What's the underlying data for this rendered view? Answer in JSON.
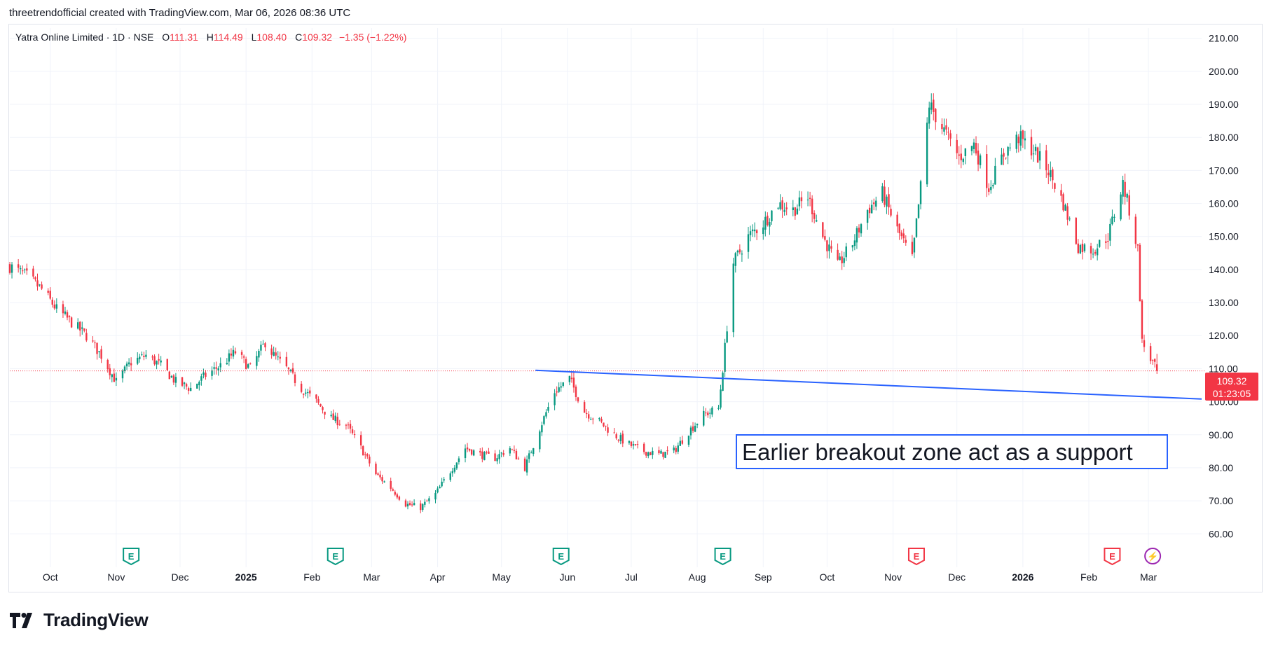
{
  "caption": "threetrendofficial created with TradingView.com, Mar 06, 2026 08:36 UTC",
  "legend": {
    "symbol": "Yatra Online Limited · 1D · NSE",
    "open_label": "O",
    "open": "111.31",
    "high_label": "H",
    "high": "114.49",
    "low_label": "L",
    "low": "108.40",
    "close_label": "C",
    "close": "109.32",
    "change": "−1.35 (−1.22%)"
  },
  "price_tag": {
    "price": "109.32",
    "countdown": "01:23:05"
  },
  "annotation": "Earlier breakout zone act as a support",
  "brand": "TradingView",
  "colors": {
    "up": "#089981",
    "down": "#f23645",
    "trendline": "#2962ff",
    "earnings_past": "#089981",
    "earnings_future": "#f23645",
    "dividend": "#9c27b0"
  },
  "event_icons": [
    {
      "label": "E",
      "date": "2024-11-08",
      "kind": "earnings-past"
    },
    {
      "label": "E",
      "date": "2025-02-12",
      "kind": "earnings-past"
    },
    {
      "label": "E",
      "date": "2025-05-29",
      "kind": "earnings-past"
    },
    {
      "label": "E",
      "date": "2025-08-13",
      "kind": "earnings-past"
    },
    {
      "label": "E",
      "date": "2025-11-12",
      "kind": "earnings-future"
    },
    {
      "label": "E",
      "date": "2026-02-12",
      "kind": "earnings-future"
    },
    {
      "label": "⚡",
      "date": "2026-03-03",
      "kind": "dividend"
    }
  ],
  "chart_data": {
    "type": "candlestick",
    "title": "Yatra Online Limited · 1D · NSE",
    "y_ticks": [
      "60.00",
      "70.00",
      "80.00",
      "90.00",
      "100.00",
      "110.00",
      "120.00",
      "130.00",
      "140.00",
      "150.00",
      "160.00",
      "170.00",
      "180.00",
      "190.00",
      "200.00",
      "210.00"
    ],
    "ylim": [
      52,
      211
    ],
    "x_ticks": [
      {
        "label": "Oct",
        "date": "2024-10-01",
        "bold": false
      },
      {
        "label": "Nov",
        "date": "2024-11-01",
        "bold": false
      },
      {
        "label": "Dec",
        "date": "2024-12-01",
        "bold": false
      },
      {
        "label": "2025",
        "date": "2025-01-01",
        "bold": true
      },
      {
        "label": "Feb",
        "date": "2025-02-01",
        "bold": false
      },
      {
        "label": "Mar",
        "date": "2025-03-01",
        "bold": false
      },
      {
        "label": "Apr",
        "date": "2025-04-01",
        "bold": false
      },
      {
        "label": "May",
        "date": "2025-05-01",
        "bold": false
      },
      {
        "label": "Jun",
        "date": "2025-06-01",
        "bold": false
      },
      {
        "label": "Jul",
        "date": "2025-07-01",
        "bold": false
      },
      {
        "label": "Aug",
        "date": "2025-08-01",
        "bold": false
      },
      {
        "label": "Sep",
        "date": "2025-09-01",
        "bold": false
      },
      {
        "label": "Oct",
        "date": "2025-10-01",
        "bold": false
      },
      {
        "label": "Nov",
        "date": "2025-11-01",
        "bold": false
      },
      {
        "label": "Dec",
        "date": "2025-12-01",
        "bold": false
      },
      {
        "label": "2026",
        "date": "2026-01-01",
        "bold": true
      },
      {
        "label": "Feb",
        "date": "2026-02-01",
        "bold": false
      },
      {
        "label": "Mar",
        "date": "2026-03-01",
        "bold": false
      }
    ],
    "xlim": [
      "2024-09-12",
      "2026-03-26"
    ],
    "last_price": 109.32,
    "grid": true,
    "trendline": {
      "start": {
        "date": "2025-05-17",
        "price": 109.5
      },
      "end": {
        "date": "2026-03-26",
        "price": 100.8
      }
    },
    "close_path": [
      [
        "2024-09-12",
        141
      ],
      [
        "2024-09-20",
        138
      ],
      [
        "2024-09-27",
        134
      ],
      [
        "2024-10-04",
        128
      ],
      [
        "2024-10-11",
        124
      ],
      [
        "2024-10-18",
        120
      ],
      [
        "2024-10-25",
        114
      ],
      [
        "2024-11-01",
        106
      ],
      [
        "2024-11-08",
        112
      ],
      [
        "2024-11-15",
        114
      ],
      [
        "2024-11-22",
        111
      ],
      [
        "2024-11-29",
        106
      ],
      [
        "2024-12-06",
        104
      ],
      [
        "2024-12-13",
        108
      ],
      [
        "2024-12-20",
        111
      ],
      [
        "2024-12-27",
        115
      ],
      [
        "2025-01-03",
        110
      ],
      [
        "2025-01-10",
        118
      ],
      [
        "2025-01-14",
        114
      ],
      [
        "2025-01-20",
        110
      ],
      [
        "2025-01-27",
        104
      ],
      [
        "2025-02-03",
        100
      ],
      [
        "2025-02-10",
        95
      ],
      [
        "2025-02-17",
        93
      ],
      [
        "2025-02-24",
        86
      ],
      [
        "2025-03-03",
        78
      ],
      [
        "2025-03-10",
        74
      ],
      [
        "2025-03-17",
        69
      ],
      [
        "2025-03-24",
        68
      ],
      [
        "2025-03-31",
        72
      ],
      [
        "2025-04-07",
        79
      ],
      [
        "2025-04-14",
        86
      ],
      [
        "2025-04-21",
        84
      ],
      [
        "2025-04-28",
        83
      ],
      [
        "2025-05-05",
        86
      ],
      [
        "2025-05-12",
        80
      ],
      [
        "2025-05-19",
        92
      ],
      [
        "2025-05-26",
        103
      ],
      [
        "2025-06-02",
        107
      ],
      [
        "2025-06-09",
        97
      ],
      [
        "2025-06-16",
        94
      ],
      [
        "2025-06-23",
        90
      ],
      [
        "2025-06-30",
        87
      ],
      [
        "2025-07-07",
        85
      ],
      [
        "2025-07-14",
        84
      ],
      [
        "2025-07-21",
        85
      ],
      [
        "2025-07-28",
        91
      ],
      [
        "2025-08-04",
        96
      ],
      [
        "2025-08-11",
        98
      ],
      [
        "2025-08-13",
        110
      ],
      [
        "2025-08-18",
        142
      ],
      [
        "2025-08-25",
        150
      ],
      [
        "2025-09-01",
        154
      ],
      [
        "2025-09-08",
        160
      ],
      [
        "2025-09-15",
        158
      ],
      [
        "2025-09-22",
        162
      ],
      [
        "2025-09-29",
        150
      ],
      [
        "2025-10-06",
        141
      ],
      [
        "2025-10-13",
        148
      ],
      [
        "2025-10-20",
        158
      ],
      [
        "2025-10-27",
        163
      ],
      [
        "2025-11-03",
        152
      ],
      [
        "2025-11-10",
        143
      ],
      [
        "2025-11-14",
        165
      ],
      [
        "2025-11-18",
        190
      ],
      [
        "2025-11-25",
        182
      ],
      [
        "2025-12-02",
        174
      ],
      [
        "2025-12-09",
        178
      ],
      [
        "2025-12-16",
        165
      ],
      [
        "2025-12-23",
        175
      ],
      [
        "2025-12-30",
        180
      ],
      [
        "2026-01-06",
        176
      ],
      [
        "2026-01-13",
        170
      ],
      [
        "2026-01-20",
        160
      ],
      [
        "2026-01-27",
        147
      ],
      [
        "2026-02-03",
        146
      ],
      [
        "2026-02-10",
        150
      ],
      [
        "2026-02-17",
        166
      ],
      [
        "2026-02-20",
        158
      ],
      [
        "2026-02-24",
        146
      ],
      [
        "2026-02-26",
        118
      ],
      [
        "2026-03-02",
        113
      ],
      [
        "2026-03-05",
        109.32
      ]
    ]
  }
}
